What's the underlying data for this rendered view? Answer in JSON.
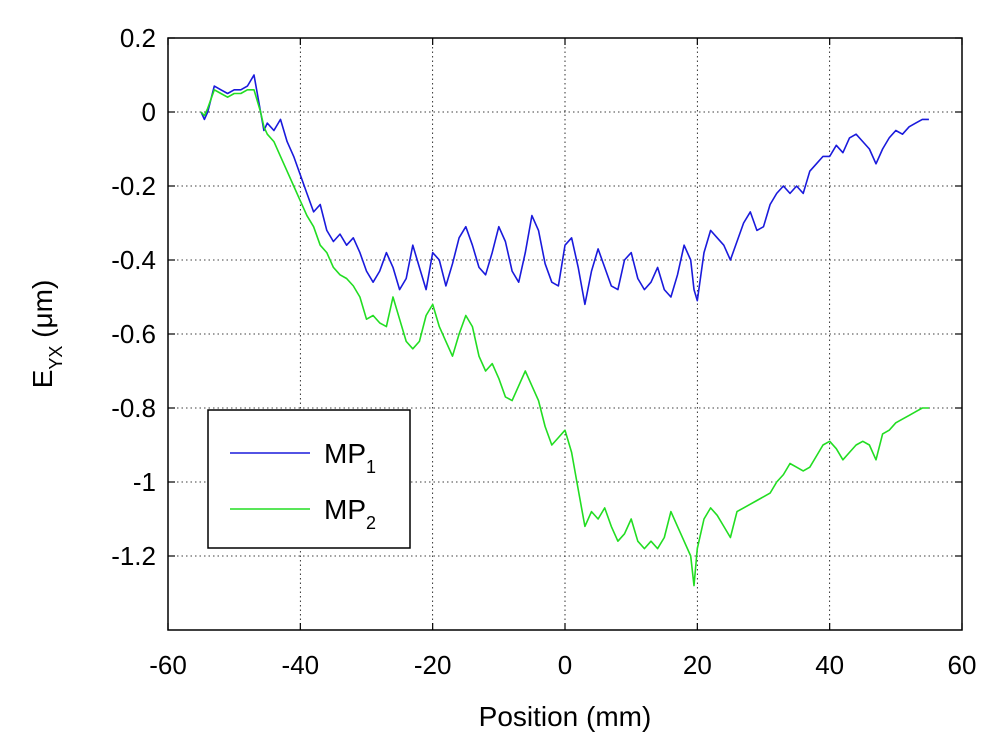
{
  "chart_data": {
    "type": "line",
    "title": "",
    "xlabel": "Position (mm)",
    "ylabel": {
      "base": "E",
      "sub": "YX",
      "unit": " (μm)"
    },
    "xlim": [
      -60,
      60
    ],
    "ylim": [
      -1.4,
      0.2
    ],
    "xticks": [
      -60,
      -40,
      -20,
      0,
      20,
      40,
      60
    ],
    "xtick_labels": [
      "-60",
      "-40",
      "-20",
      "0",
      "20",
      "40",
      "60"
    ],
    "yticks": [
      0.2,
      0,
      -0.2,
      -0.4,
      -0.6,
      -0.8,
      -1,
      -1.2
    ],
    "ytick_labels": [
      "0.2",
      "0",
      "-0.2",
      "-0.4",
      "-0.6",
      "-0.8",
      "-1",
      "-1.2"
    ],
    "grid": true,
    "legend": {
      "placement": "bottom-left"
    },
    "series": [
      {
        "name": "MP₁",
        "legend_base": "MP",
        "legend_sub": "1",
        "color": "#1a1adc",
        "x": [
          -55,
          -54.5,
          -54,
          -53,
          -52,
          -51,
          -50,
          -49,
          -48,
          -47,
          -46.5,
          -46,
          -45.5,
          -45,
          -44,
          -43,
          -42,
          -41,
          -40,
          -39,
          -38,
          -37,
          -36,
          -35,
          -34,
          -33,
          -32,
          -31,
          -30,
          -29,
          -28,
          -27,
          -26,
          -25,
          -24,
          -23,
          -22,
          -21,
          -20,
          -19,
          -18,
          -17,
          -16,
          -15,
          -14,
          -13,
          -12,
          -11,
          -10,
          -9,
          -8,
          -7,
          -6,
          -5,
          -4,
          -3,
          -2,
          -1,
          0,
          1,
          2,
          3,
          4,
          5,
          6,
          7,
          8,
          9,
          10,
          11,
          12,
          13,
          14,
          15,
          16,
          17,
          18,
          19,
          19.5,
          20,
          21,
          22,
          23,
          24,
          25,
          26,
          27,
          28,
          29,
          30,
          31,
          32,
          33,
          34,
          35,
          36,
          37,
          38,
          39,
          40,
          41,
          42,
          43,
          44,
          45,
          46,
          47,
          48,
          49,
          50,
          51,
          52,
          53,
          54,
          55
        ],
        "y": [
          0,
          -0.02,
          0,
          0.07,
          0.06,
          0.05,
          0.06,
          0.06,
          0.07,
          0.1,
          0.05,
          0,
          -0.05,
          -0.03,
          -0.05,
          -0.02,
          -0.08,
          -0.12,
          -0.17,
          -0.22,
          -0.27,
          -0.25,
          -0.32,
          -0.35,
          -0.33,
          -0.36,
          -0.34,
          -0.38,
          -0.43,
          -0.46,
          -0.43,
          -0.38,
          -0.42,
          -0.48,
          -0.45,
          -0.36,
          -0.42,
          -0.48,
          -0.38,
          -0.4,
          -0.47,
          -0.41,
          -0.34,
          -0.31,
          -0.36,
          -0.42,
          -0.44,
          -0.38,
          -0.31,
          -0.35,
          -0.43,
          -0.46,
          -0.38,
          -0.28,
          -0.32,
          -0.41,
          -0.46,
          -0.47,
          -0.36,
          -0.34,
          -0.42,
          -0.52,
          -0.43,
          -0.37,
          -0.42,
          -0.47,
          -0.48,
          -0.4,
          -0.38,
          -0.45,
          -0.48,
          -0.46,
          -0.42,
          -0.48,
          -0.5,
          -0.44,
          -0.36,
          -0.4,
          -0.48,
          -0.51,
          -0.38,
          -0.32,
          -0.34,
          -0.36,
          -0.4,
          -0.35,
          -0.3,
          -0.27,
          -0.32,
          -0.31,
          -0.25,
          -0.22,
          -0.2,
          -0.22,
          -0.2,
          -0.22,
          -0.16,
          -0.14,
          -0.12,
          -0.12,
          -0.09,
          -0.11,
          -0.07,
          -0.06,
          -0.08,
          -0.1,
          -0.14,
          -0.1,
          -0.07,
          -0.05,
          -0.06,
          -0.04,
          -0.03,
          -0.02,
          -0.02
        ]
      },
      {
        "name": "MP₂",
        "legend_base": "MP",
        "legend_sub": "2",
        "color": "#22dd22",
        "x": [
          -55,
          -54.5,
          -54,
          -53,
          -52,
          -51,
          -50,
          -49,
          -48,
          -47,
          -46.5,
          -46,
          -45.5,
          -45,
          -44,
          -43,
          -42,
          -41,
          -40,
          -39,
          -38,
          -37,
          -36,
          -35,
          -34,
          -33,
          -32,
          -31,
          -30,
          -29,
          -28,
          -27,
          -26,
          -25,
          -24,
          -23,
          -22,
          -21,
          -20,
          -19,
          -18,
          -17,
          -16,
          -15,
          -14,
          -13,
          -12,
          -11,
          -10,
          -9,
          -8,
          -7,
          -6,
          -5,
          -4,
          -3,
          -2,
          -1,
          0,
          1,
          2,
          3,
          4,
          5,
          6,
          7,
          8,
          9,
          10,
          11,
          12,
          13,
          14,
          15,
          16,
          17,
          18,
          19,
          19.5,
          20,
          21,
          22,
          23,
          24,
          25,
          26,
          27,
          28,
          29,
          30,
          31,
          32,
          33,
          34,
          35,
          36,
          37,
          38,
          39,
          40,
          41,
          42,
          43,
          44,
          45,
          46,
          47,
          48,
          49,
          50,
          51,
          52,
          53,
          54,
          55
        ],
        "y": [
          0,
          -0.01,
          0.01,
          0.06,
          0.05,
          0.04,
          0.05,
          0.05,
          0.06,
          0.06,
          0.03,
          0,
          -0.04,
          -0.06,
          -0.08,
          -0.12,
          -0.16,
          -0.2,
          -0.24,
          -0.28,
          -0.31,
          -0.36,
          -0.38,
          -0.42,
          -0.44,
          -0.45,
          -0.47,
          -0.5,
          -0.56,
          -0.55,
          -0.57,
          -0.58,
          -0.5,
          -0.56,
          -0.62,
          -0.64,
          -0.62,
          -0.55,
          -0.52,
          -0.58,
          -0.62,
          -0.66,
          -0.6,
          -0.55,
          -0.58,
          -0.66,
          -0.7,
          -0.68,
          -0.72,
          -0.77,
          -0.78,
          -0.74,
          -0.7,
          -0.74,
          -0.78,
          -0.85,
          -0.9,
          -0.88,
          -0.86,
          -0.92,
          -1.02,
          -1.12,
          -1.08,
          -1.1,
          -1.07,
          -1.12,
          -1.16,
          -1.14,
          -1.1,
          -1.16,
          -1.18,
          -1.16,
          -1.18,
          -1.15,
          -1.08,
          -1.12,
          -1.16,
          -1.2,
          -1.28,
          -1.18,
          -1.1,
          -1.07,
          -1.09,
          -1.12,
          -1.15,
          -1.08,
          -1.07,
          -1.06,
          -1.05,
          -1.04,
          -1.03,
          -1.0,
          -0.98,
          -0.95,
          -0.96,
          -0.97,
          -0.96,
          -0.93,
          -0.9,
          -0.89,
          -0.91,
          -0.94,
          -0.92,
          -0.9,
          -0.89,
          -0.9,
          -0.94,
          -0.87,
          -0.86,
          -0.84,
          -0.83,
          -0.82,
          -0.81,
          -0.8,
          -0.8
        ]
      }
    ]
  }
}
